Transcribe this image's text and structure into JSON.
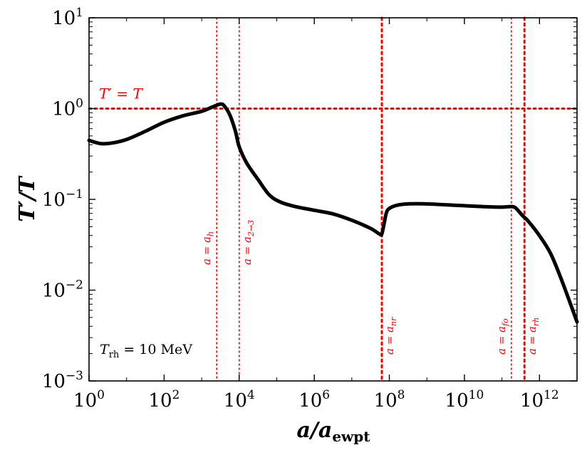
{
  "chart_data": {
    "type": "line",
    "x_scale": "log",
    "y_scale": "log",
    "xlim_exp": [
      0,
      13
    ],
    "ylim_exp": [
      -3,
      1
    ],
    "x_ticks": [
      {
        "exp": 0,
        "base": "10",
        "sup": "0"
      },
      {
        "exp": 2,
        "base": "10",
        "sup": "2"
      },
      {
        "exp": 4,
        "base": "10",
        "sup": "4"
      },
      {
        "exp": 6,
        "base": "10",
        "sup": "6"
      },
      {
        "exp": 8,
        "base": "10",
        "sup": "8"
      },
      {
        "exp": 10,
        "base": "10",
        "sup": "10"
      },
      {
        "exp": 12,
        "base": "10",
        "sup": "12"
      }
    ],
    "y_ticks": [
      {
        "exp": -3,
        "base": "10",
        "sup": "−3"
      },
      {
        "exp": -2,
        "base": "10",
        "sup": "−2"
      },
      {
        "exp": -1,
        "base": "10",
        "sup": "−1"
      },
      {
        "exp": 0,
        "base": "10",
        "sup": "0"
      },
      {
        "exp": 1,
        "base": "10",
        "sup": "1"
      }
    ],
    "xlabel": "a/a",
    "xlabel_sub": "ewpt",
    "ylabel": "T′/T",
    "series": [
      {
        "name": "T'/T",
        "color": "#000000",
        "points": [
          [
            0.0,
            -0.35
          ],
          [
            0.3,
            -0.385
          ],
          [
            0.6,
            -0.38
          ],
          [
            1.0,
            -0.34
          ],
          [
            1.5,
            -0.25
          ],
          [
            2.0,
            -0.15
          ],
          [
            2.5,
            -0.08
          ],
          [
            3.0,
            -0.03
          ],
          [
            3.3,
            0.02
          ],
          [
            3.5,
            0.05
          ],
          [
            3.6,
            0.03
          ],
          [
            3.75,
            -0.07
          ],
          [
            3.9,
            -0.25
          ],
          [
            4.0,
            -0.42
          ],
          [
            4.2,
            -0.6
          ],
          [
            4.5,
            -0.78
          ],
          [
            4.8,
            -0.95
          ],
          [
            5.1,
            -1.03
          ],
          [
            5.5,
            -1.08
          ],
          [
            6.0,
            -1.12
          ],
          [
            6.5,
            -1.16
          ],
          [
            7.0,
            -1.23
          ],
          [
            7.5,
            -1.32
          ],
          [
            7.75,
            -1.385
          ],
          [
            7.8,
            -1.38
          ],
          [
            7.85,
            -1.29
          ],
          [
            7.92,
            -1.15
          ],
          [
            8.0,
            -1.1
          ],
          [
            8.2,
            -1.065
          ],
          [
            8.5,
            -1.05
          ],
          [
            9.0,
            -1.05
          ],
          [
            9.5,
            -1.06
          ],
          [
            10.0,
            -1.07
          ],
          [
            10.5,
            -1.08
          ],
          [
            11.0,
            -1.085
          ],
          [
            11.2,
            -1.08
          ],
          [
            11.35,
            -1.09
          ],
          [
            11.55,
            -1.18
          ],
          [
            11.7,
            -1.24
          ],
          [
            12.0,
            -1.4
          ],
          [
            12.3,
            -1.6
          ],
          [
            12.6,
            -1.9
          ],
          [
            13.0,
            -2.35
          ]
        ]
      }
    ],
    "hlines": [
      {
        "y_exp": 0,
        "label": "T′ = T",
        "color": "#ff0000",
        "style": "dotted-thick"
      }
    ],
    "vlines": [
      {
        "x_exp": 3.4,
        "label": "a = a",
        "sub": "h",
        "style": "dotted-thin",
        "color": "#ff0000"
      },
      {
        "x_exp": 4.0,
        "label": "a = a",
        "sub": "2→3",
        "style": "dotted-thin",
        "color": "#ff0000"
      },
      {
        "x_exp": 7.8,
        "label": "a = a",
        "sub": "nr",
        "style": "dotted-thick",
        "color": "#ff0000"
      },
      {
        "x_exp": 11.25,
        "label": "a = a",
        "sub": "fo",
        "style": "dotted-thin",
        "color": "#ff0000"
      },
      {
        "x_exp": 11.6,
        "label": "a = a",
        "sub": "rh",
        "style": "dotted-thick",
        "color": "#ff0000"
      }
    ],
    "annotation": {
      "text_main": "T",
      "text_sub": "rh",
      "text_rest": " = 10 MeV"
    }
  }
}
